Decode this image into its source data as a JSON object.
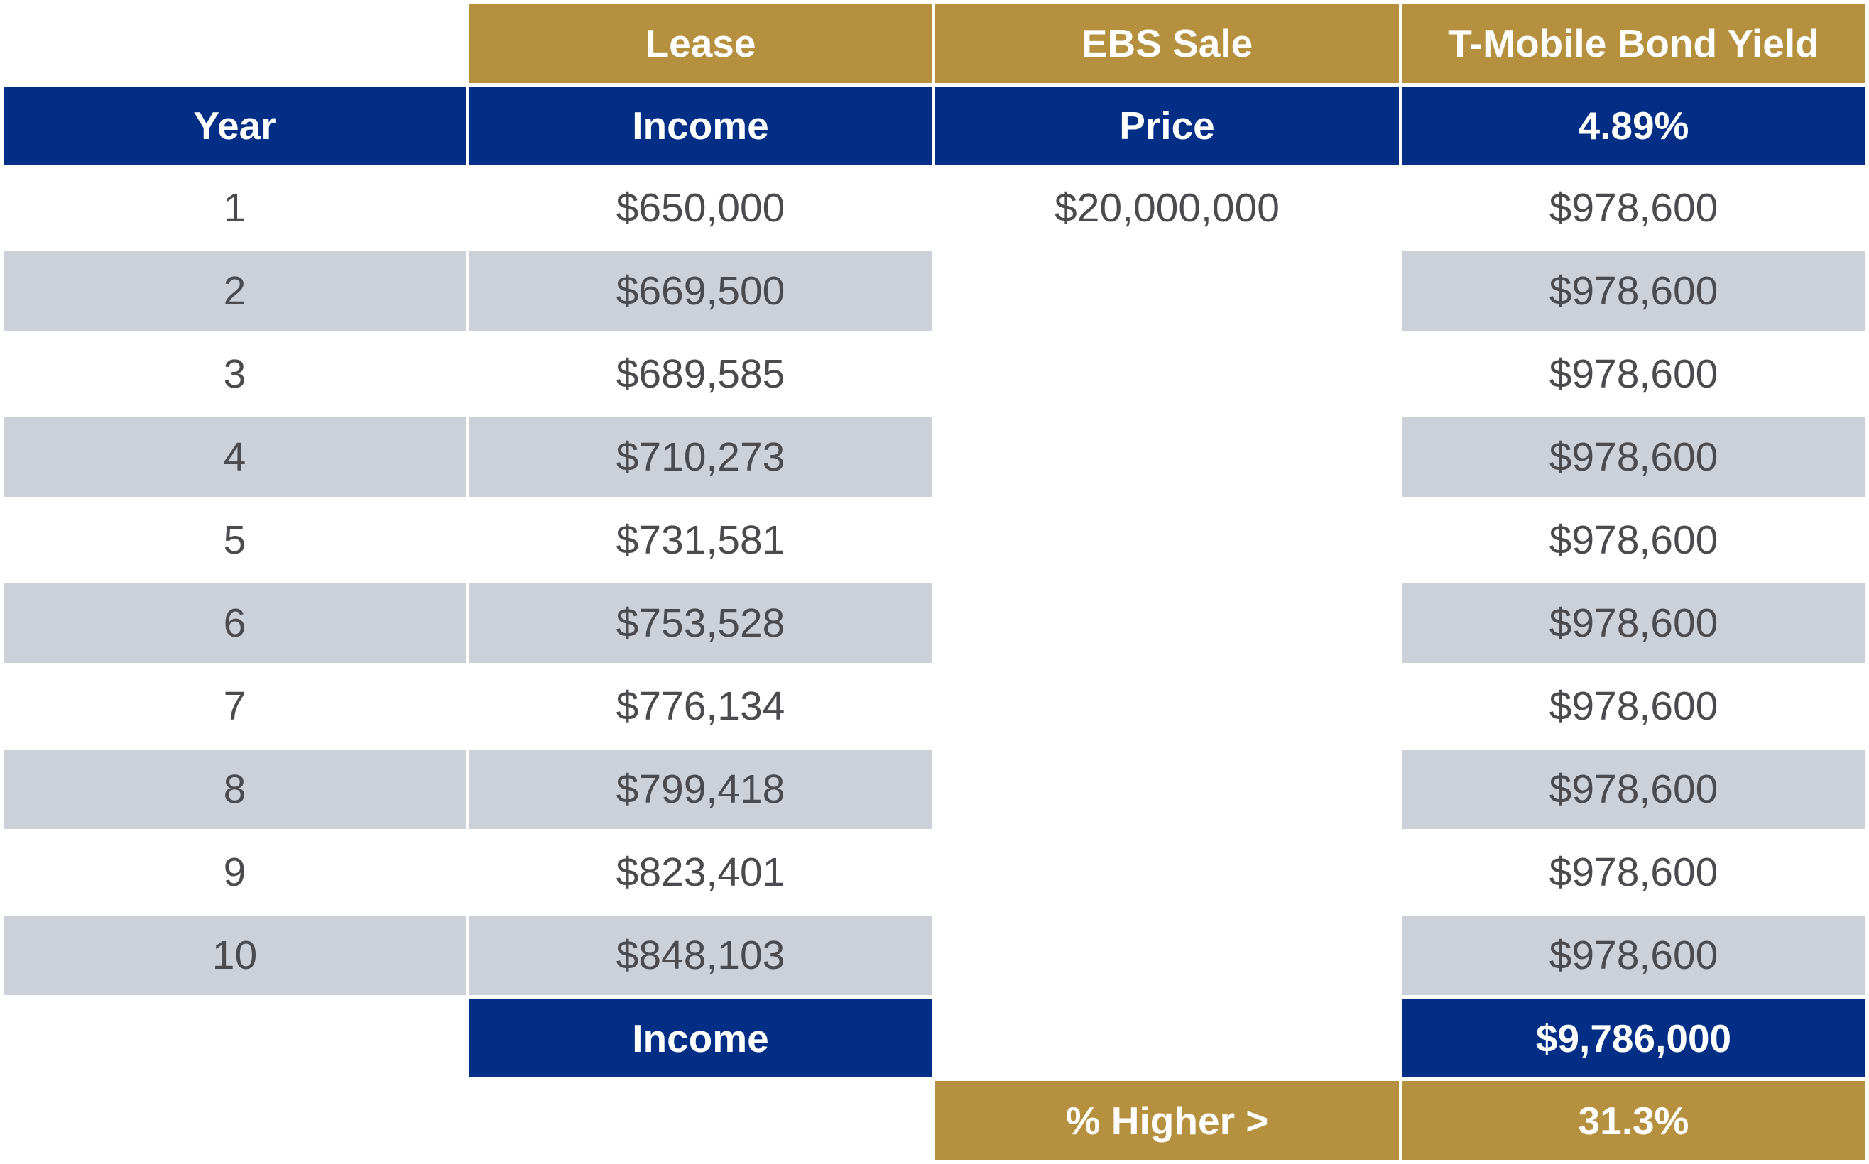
{
  "colors": {
    "gold_header": "#b5913f",
    "navy_header": "#022f85",
    "row_shade": "#ccd0d8",
    "text_dark": "#4a4a4f",
    "text_light": "#ffffff"
  },
  "header": {
    "top": {
      "lease": "Lease",
      "ebs_sale": "EBS Sale",
      "bond_yield": "T-Mobile Bond Yield"
    },
    "second": {
      "year": "Year",
      "income": "Income",
      "price": "Price",
      "yield_rate": "4.89%"
    }
  },
  "rows": [
    {
      "year": "1",
      "lease_income": "$650,000",
      "ebs_price": "$20,000,000",
      "bond_income": "$978,600"
    },
    {
      "year": "2",
      "lease_income": "$669,500",
      "ebs_price": "",
      "bond_income": "$978,600"
    },
    {
      "year": "3",
      "lease_income": "$689,585",
      "ebs_price": "",
      "bond_income": "$978,600"
    },
    {
      "year": "4",
      "lease_income": "$710,273",
      "ebs_price": "",
      "bond_income": "$978,600"
    },
    {
      "year": "5",
      "lease_income": "$731,581",
      "ebs_price": "",
      "bond_income": "$978,600"
    },
    {
      "year": "6",
      "lease_income": "$753,528",
      "ebs_price": "",
      "bond_income": "$978,600"
    },
    {
      "year": "7",
      "lease_income": "$776,134",
      "ebs_price": "",
      "bond_income": "$978,600"
    },
    {
      "year": "8",
      "lease_income": "$799,418",
      "ebs_price": "",
      "bond_income": "$978,600"
    },
    {
      "year": "9",
      "lease_income": "$823,401",
      "ebs_price": "",
      "bond_income": "$978,600"
    },
    {
      "year": "10",
      "lease_income": "$848,103",
      "ebs_price": "",
      "bond_income": "$978,600"
    }
  ],
  "totals": {
    "label": "Income",
    "bond_total": "$9,786,000"
  },
  "comparison": {
    "label": "% Higher >",
    "value": "31.3%"
  },
  "chart_data": {
    "type": "table",
    "columns": [
      "Year",
      "Lease Income",
      "EBS Sale Price",
      "T-Mobile Bond Yield 4.89%"
    ],
    "rows": [
      [
        1,
        650000,
        20000000,
        978600
      ],
      [
        2,
        669500,
        null,
        978600
      ],
      [
        3,
        689585,
        null,
        978600
      ],
      [
        4,
        710273,
        null,
        978600
      ],
      [
        5,
        731581,
        null,
        978600
      ],
      [
        6,
        753528,
        null,
        978600
      ],
      [
        7,
        776134,
        null,
        978600
      ],
      [
        8,
        799418,
        null,
        978600
      ],
      [
        9,
        823401,
        null,
        978600
      ],
      [
        10,
        848103,
        null,
        978600
      ]
    ],
    "totals": {
      "bond_income": 9786000
    },
    "percent_higher": 31.3
  }
}
